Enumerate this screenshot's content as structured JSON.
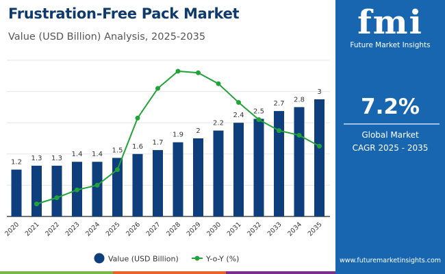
{
  "header": {
    "title": "Frustration-Free Pack Market",
    "subtitle": "Value (USD Billion) Analysis, 2025-2035"
  },
  "panel": {
    "logo_text": "fmi",
    "brand": "Future Market Insights",
    "cagr": "7.2%",
    "label_line1": "Global Market",
    "label_line2": "CAGR 2025 - 2035",
    "url": "www.futuremarketinsights.com",
    "color": "#1866b0"
  },
  "colors": {
    "bar": "#0e3e7c",
    "line": "#22a33a",
    "stripe": [
      "#7ab648",
      "#e8622a",
      "#7b2f8e"
    ]
  },
  "chart_data": {
    "type": "bar",
    "categories": [
      "2020",
      "2021",
      "2022",
      "2023",
      "2024",
      "2025",
      "2026",
      "2027",
      "2028",
      "2029",
      "2030",
      "2031",
      "2032",
      "2033",
      "2034",
      "2035"
    ],
    "series": [
      {
        "name": "Value (USD Billion)",
        "type": "bar",
        "values": [
          1.2,
          1.3,
          1.3,
          1.4,
          1.4,
          1.5,
          1.6,
          1.7,
          1.9,
          2,
          2.2,
          2.4,
          2.5,
          2.7,
          2.8,
          3
        ],
        "labels": [
          "1.2",
          "1.3",
          "1.3",
          "1.4",
          "1.4",
          "1.5",
          "1.6",
          "1.7",
          "1.9",
          "2",
          "2.2",
          "2.4",
          "2.5",
          "2.7",
          "2.8",
          "3"
        ]
      },
      {
        "name": "Y-o-Y (%)",
        "type": "line",
        "values": [
          null,
          0.8,
          1.2,
          1.7,
          2.0,
          3.0,
          6.3,
          8.2,
          9.3,
          9.2,
          8.5,
          7.3,
          6.2,
          5.5,
          5.2,
          4.5
        ]
      }
    ],
    "ylim": [
      0,
      4
    ],
    "y2lim": [
      0,
      10
    ],
    "grid": true,
    "legend": "bottom"
  }
}
